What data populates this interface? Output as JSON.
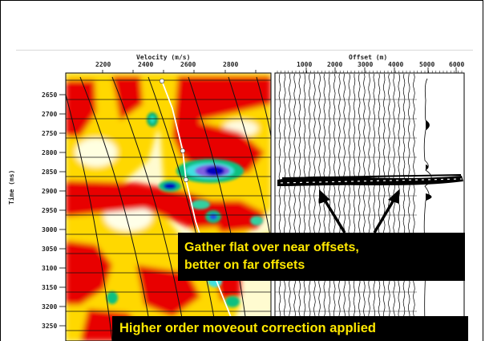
{
  "velocity_panel": {
    "title": "Velocity (m/s)",
    "ticks": [
      "2200",
      "2400",
      "2600",
      "2800"
    ]
  },
  "offset_panel": {
    "title": "Offset (m)",
    "ticks": [
      "1000",
      "2000",
      "3000",
      "4000",
      "5000",
      "6000"
    ]
  },
  "time_axis": {
    "title": "Time (ms)",
    "ticks": [
      "2650",
      "2700",
      "2750",
      "2800",
      "2850",
      "2900",
      "2950",
      "3000",
      "3050",
      "3100",
      "3150",
      "3200",
      "3250"
    ]
  },
  "annotations": {
    "callout_1_line_1": "Gather flat over near offsets,",
    "callout_1_line_2": "better on far offsets",
    "callout_2": "Higher order moveout correction applied",
    "text_color": "#FFE800",
    "box_color": "#000000"
  },
  "colors": {
    "semblance_low": "#FFFFE0",
    "semblance_mid": "#FFD800",
    "semblance_high": "#E80000",
    "semblance_peak": "#0000C0",
    "semblance_contour": "#10C080"
  }
}
